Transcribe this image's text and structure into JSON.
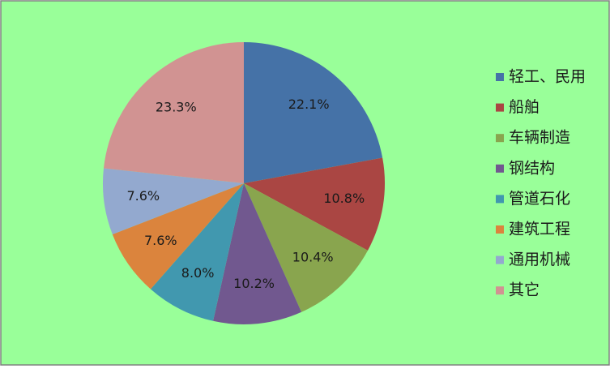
{
  "chart_data": {
    "type": "pie",
    "categories": [
      "轻工、民用",
      "船舶",
      "车辆制造",
      "钢结构",
      "管道石化",
      "建筑工程",
      "通用机械",
      "其它"
    ],
    "values": [
      22.1,
      10.8,
      10.4,
      10.2,
      8.0,
      7.6,
      7.6,
      23.3
    ],
    "value_labels": [
      "22.1%",
      "10.8%",
      "10.4%",
      "10.2%",
      "8.0%",
      "7.6%",
      "7.6%",
      "23.3%"
    ],
    "colors": [
      "#4572A7",
      "#AA4643",
      "#89A54E",
      "#71588F",
      "#4198AF",
      "#DB843D",
      "#93A9CF",
      "#D19392"
    ],
    "legend": "right"
  }
}
